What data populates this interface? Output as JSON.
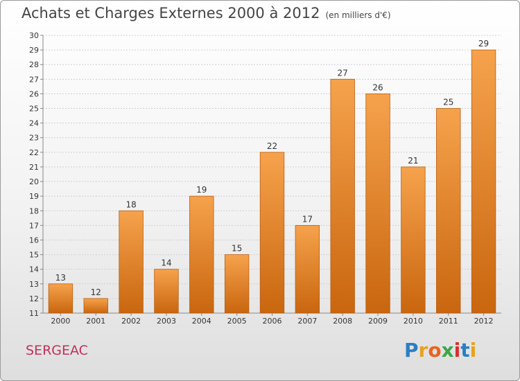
{
  "header": {
    "title": "Achats et Charges Externes 2000 à 2012",
    "unit": "(en milliers d'€)"
  },
  "footer": {
    "commune": "SERGEAC",
    "brand": "Proxiti",
    "brand_colors": [
      "#2a7fc4",
      "#e8a21f",
      "#e8641f",
      "#3aa64a",
      "#d6302f",
      "#2a7fc4",
      "#e8a21f"
    ]
  },
  "colors": {
    "bar_top": "#f6a24c",
    "bar_bottom": "#c9660f",
    "bar_stroke": "#b85e12",
    "grid": "#cfcfcf",
    "axis": "#888888"
  },
  "chart_data": {
    "type": "bar",
    "title": "Achats et Charges Externes 2000 à 2012",
    "xlabel": "",
    "ylabel": "",
    "categories": [
      "2000",
      "2001",
      "2002",
      "2003",
      "2004",
      "2005",
      "2006",
      "2007",
      "2008",
      "2009",
      "2010",
      "2011",
      "2012"
    ],
    "values": [
      13,
      12,
      18,
      14,
      19,
      15,
      22,
      17,
      27,
      26,
      21,
      25,
      29
    ],
    "ylim": [
      11,
      30
    ],
    "yticks": [
      "11",
      "12",
      "13",
      "14",
      "15",
      "16",
      "17",
      "18",
      "19",
      "20",
      "21",
      "22",
      "23",
      "24",
      "25",
      "26",
      "27",
      "28",
      "29",
      "30"
    ],
    "grid": true
  }
}
